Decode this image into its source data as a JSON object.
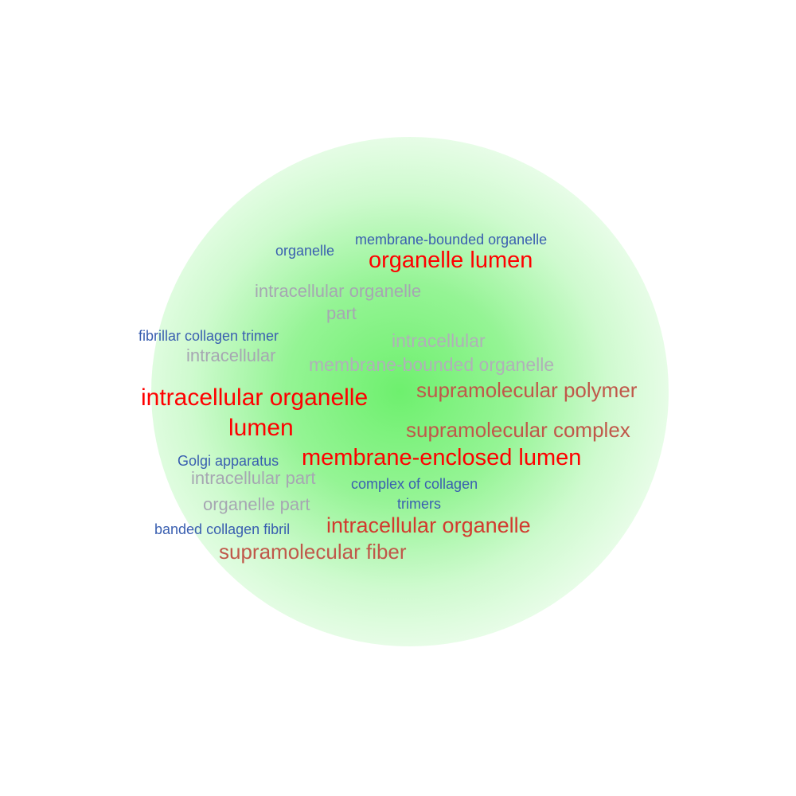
{
  "terms": [
    {
      "id": "organelle",
      "text": "organelle",
      "color": "#3a5fb0"
    },
    {
      "id": "membrane-bounded-organelle-top",
      "text": "membrane-bounded organelle",
      "color": "#3a5fb0"
    },
    {
      "id": "organelle-lumen",
      "text": "organelle lumen",
      "color": "#ff0000"
    },
    {
      "id": "intracellular-organelle-part-1",
      "text": "intracellular organelle",
      "color": "#a6a6b2"
    },
    {
      "id": "intracellular-organelle-part-2",
      "text": "part",
      "color": "#a6a6b2"
    },
    {
      "id": "fibrillar-collagen-trimer",
      "text": "fibrillar collagen trimer",
      "color": "#3a5fb0"
    },
    {
      "id": "intracellular-left",
      "text": "intracellular",
      "color": "#a6a6b2"
    },
    {
      "id": "intracellular-mbo-1",
      "text": "intracellular",
      "color": "#b0b0b8"
    },
    {
      "id": "intracellular-mbo-2",
      "text": "membrane-bounded organelle",
      "color": "#b0b0b8"
    },
    {
      "id": "intracellular-organelle-lumen-1",
      "text": "intracellular organelle",
      "color": "#ff0000"
    },
    {
      "id": "intracellular-organelle-lumen-2",
      "text": "lumen",
      "color": "#ff0000"
    },
    {
      "id": "supramolecular-polymer",
      "text": "supramolecular polymer",
      "color": "#c0584a"
    },
    {
      "id": "supramolecular-complex",
      "text": "supramolecular complex",
      "color": "#c0584a"
    },
    {
      "id": "golgi-apparatus",
      "text": "Golgi apparatus",
      "color": "#3a5fb0"
    },
    {
      "id": "membrane-enclosed-lumen",
      "text": "membrane-enclosed lumen",
      "color": "#ff0000"
    },
    {
      "id": "intracellular-part",
      "text": "intracellular part",
      "color": "#a6a6b2"
    },
    {
      "id": "complex-of-collagen-trimers-1",
      "text": "complex of collagen",
      "color": "#3a5fb0"
    },
    {
      "id": "complex-of-collagen-trimers-2",
      "text": "trimers",
      "color": "#3a5fb0"
    },
    {
      "id": "organelle-part",
      "text": "organelle part",
      "color": "#a6a6b2"
    },
    {
      "id": "banded-collagen-fibril",
      "text": "banded collagen fibril",
      "color": "#3a5fb0"
    },
    {
      "id": "intracellular-organelle",
      "text": "intracellular organelle",
      "color": "#d23a2e"
    },
    {
      "id": "supramolecular-fiber",
      "text": "supramolecular fiber",
      "color": "#c0584a"
    }
  ]
}
